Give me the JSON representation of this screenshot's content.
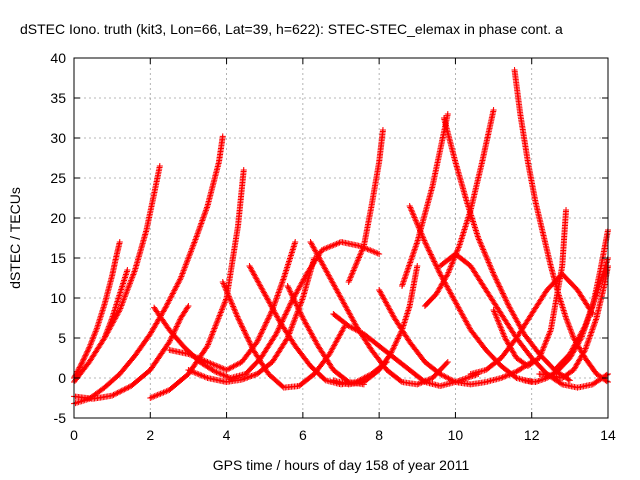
{
  "title": "dSTEC Iono. truth (kit3, Lon=66, Lat=39, h=622): STEC-STEC_elemax in phase cont. a",
  "chart_data": {
    "type": "scatter",
    "title": "dSTEC Iono. truth (kit3, Lon=66, Lat=39, h=622): STEC-STEC_elemax in phase cont. a",
    "xlabel": "GPS time / hours of day 158 of year 2011",
    "ylabel": "dSTEC  / TECUs",
    "xlim": [
      0,
      14
    ],
    "ylim": [
      -5,
      40
    ],
    "xticks": [
      "0",
      "2",
      "4",
      "6",
      "8",
      "10",
      "12",
      "14"
    ],
    "yticks": [
      "-5",
      "0",
      "5",
      "10",
      "15",
      "20",
      "25",
      "30",
      "35",
      "40"
    ],
    "grid": true,
    "marker": "plus",
    "color": "#ff0000",
    "series": [
      {
        "x": [
          0.0,
          0.2,
          0.4,
          0.6,
          0.8,
          1.0,
          1.1,
          1.2
        ],
        "y": [
          0.0,
          1.8,
          3.8,
          6.2,
          9.2,
          12.8,
          15.0,
          17.0
        ]
      },
      {
        "x": [
          0.0,
          0.4,
          0.8,
          1.2,
          1.6,
          1.9,
          2.1,
          2.25
        ],
        "y": [
          -0.5,
          2.0,
          5.0,
          8.5,
          13.5,
          18.5,
          23.0,
          26.5
        ]
      },
      {
        "x": [
          0.8,
          1.0,
          1.2,
          1.4
        ],
        "y": [
          5.0,
          7.5,
          10.5,
          13.5
        ]
      },
      {
        "x": [
          0.0,
          0.4,
          0.8,
          1.2,
          1.6,
          2.0,
          2.4,
          2.8,
          3.2,
          3.5,
          3.8,
          3.9
        ],
        "y": [
          -3.2,
          -2.6,
          -1.2,
          0.5,
          2.8,
          5.5,
          8.8,
          12.5,
          17.5,
          21.5,
          27.0,
          30.2
        ]
      },
      {
        "x": [
          2.0,
          2.5,
          3.0,
          3.5,
          4.0,
          4.3,
          4.45
        ],
        "y": [
          -2.5,
          -1.5,
          0.5,
          4.0,
          10.0,
          19.0,
          26.0
        ]
      },
      {
        "x": [
          0.0,
          0.5,
          1.0,
          1.5,
          2.0,
          2.5,
          2.8,
          3.0
        ],
        "y": [
          -2.3,
          -2.6,
          -2.2,
          -1.0,
          1.0,
          4.5,
          7.5,
          9.0
        ]
      },
      {
        "x": [
          2.1,
          2.5,
          2.9,
          3.3,
          3.7,
          4.1,
          4.5,
          4.9,
          5.3,
          5.7,
          6.1,
          6.5,
          7.0,
          7.5,
          8.0
        ],
        "y": [
          8.8,
          6.0,
          3.8,
          2.0,
          0.8,
          0.0,
          0.5,
          2.5,
          5.5,
          9.5,
          13.0,
          16.0,
          17.0,
          16.5,
          15.5
        ]
      },
      {
        "x": [
          3.0,
          3.5,
          4.0,
          4.4,
          4.8,
          5.2,
          5.6,
          6.0,
          6.3
        ],
        "y": [
          1.0,
          0.0,
          -0.5,
          -0.2,
          0.5,
          2.0,
          5.0,
          10.0,
          15.0
        ]
      },
      {
        "x": [
          2.5,
          3.0,
          3.5,
          4.0,
          4.4,
          4.8,
          5.2,
          5.5,
          5.8
        ],
        "y": [
          3.5,
          3.0,
          2.0,
          1.0,
          2.0,
          4.5,
          8.5,
          12.5,
          17.0
        ]
      },
      {
        "x": [
          3.9,
          4.3,
          4.7,
          5.1,
          5.5,
          5.9,
          6.3,
          6.7,
          7.1
        ],
        "y": [
          12.0,
          7.5,
          3.5,
          0.5,
          -1.2,
          -1.0,
          0.5,
          3.0,
          6.5
        ]
      },
      {
        "x": [
          4.6,
          5.0,
          5.4,
          5.8,
          6.2,
          6.6,
          7.0,
          7.4,
          7.8,
          8.2
        ],
        "y": [
          14.0,
          10.5,
          7.0,
          4.0,
          1.5,
          -0.3,
          -0.8,
          -0.5,
          0.5,
          2.0
        ]
      },
      {
        "x": [
          5.6,
          6.0,
          6.4,
          6.8,
          7.2,
          7.6
        ],
        "y": [
          11.5,
          7.5,
          4.0,
          1.0,
          -0.5,
          -0.8
        ]
      },
      {
        "x": [
          6.2,
          6.6,
          7.0,
          7.4,
          7.8,
          8.2,
          8.6,
          9.0,
          9.4,
          9.6,
          9.8
        ],
        "y": [
          17.0,
          13.5,
          10.0,
          6.5,
          3.5,
          1.0,
          -0.5,
          -0.8,
          0.0,
          1.0,
          2.0
        ]
      },
      {
        "x": [
          6.8,
          7.2,
          7.6,
          8.0,
          8.4,
          8.8,
          9.2,
          9.6,
          10.0,
          10.3,
          10.6
        ],
        "y": [
          8.0,
          6.5,
          5.5,
          4.0,
          2.5,
          1.0,
          -0.5,
          -1.0,
          -0.5,
          0.0,
          0.5
        ]
      },
      {
        "x": [
          7.2,
          7.6,
          7.8,
          8.0,
          8.1
        ],
        "y": [
          12.0,
          16.5,
          21.5,
          27.0,
          31.0
        ]
      },
      {
        "x": [
          6.8,
          7.2,
          7.6,
          8.0,
          8.3,
          8.6,
          8.8,
          9.0
        ],
        "y": [
          -0.3,
          -0.8,
          -0.5,
          1.0,
          3.0,
          6.0,
          9.0,
          14.0
        ]
      },
      {
        "x": [
          8.0,
          8.4,
          8.8,
          9.2,
          9.6,
          10.0,
          10.4,
          10.8,
          11.2,
          11.6,
          12.0
        ],
        "y": [
          11.0,
          7.5,
          4.5,
          2.0,
          0.5,
          -0.5,
          -0.8,
          -0.5,
          0.0,
          0.8,
          2.0
        ]
      },
      {
        "x": [
          8.8,
          9.2,
          9.6,
          10.0,
          10.4,
          10.8,
          11.2,
          11.6,
          12.0
        ],
        "y": [
          21.5,
          17.0,
          13.0,
          9.5,
          6.0,
          3.5,
          1.5,
          0.0,
          -0.5
        ]
      },
      {
        "x": [
          8.6,
          9.0,
          9.4,
          9.6,
          9.8
        ],
        "y": [
          11.5,
          17.0,
          24.0,
          28.5,
          33.0
        ]
      },
      {
        "x": [
          9.7,
          10.0,
          10.3,
          10.6,
          11.0,
          11.4,
          11.8,
          12.2,
          12.6,
          13.0
        ],
        "y": [
          32.5,
          27.0,
          22.0,
          17.5,
          13.0,
          9.0,
          5.5,
          3.0,
          1.0,
          -0.3
        ]
      },
      {
        "x": [
          9.2,
          9.5,
          9.8,
          10.1,
          10.4,
          10.7,
          11.0
        ],
        "y": [
          9.0,
          10.5,
          13.0,
          16.5,
          21.0,
          27.0,
          33.5
        ]
      },
      {
        "x": [
          9.6,
          10.0,
          10.4,
          10.8,
          11.2,
          11.6,
          12.0,
          12.4,
          12.8,
          13.2,
          13.6,
          14.0
        ],
        "y": [
          14.0,
          15.5,
          14.0,
          11.0,
          8.0,
          5.0,
          2.5,
          0.5,
          -0.8,
          -1.2,
          -0.8,
          0.5
        ]
      },
      {
        "x": [
          10.4,
          10.8,
          11.2,
          11.6,
          12.0,
          12.4,
          12.8,
          13.2,
          13.6
        ],
        "y": [
          0.5,
          1.0,
          2.5,
          5.0,
          8.0,
          11.0,
          13.0,
          11.0,
          8.0
        ]
      },
      {
        "x": [
          11.55,
          11.7,
          11.9,
          12.1,
          12.3,
          12.5,
          12.7,
          12.9,
          13.1,
          13.4,
          13.7,
          14.0
        ],
        "y": [
          38.5,
          33.0,
          27.0,
          22.0,
          18.0,
          14.0,
          10.5,
          7.5,
          5.0,
          2.5,
          0.5,
          -0.5
        ]
      },
      {
        "x": [
          11.0,
          11.3,
          11.6,
          11.9,
          12.2,
          12.5,
          12.8,
          12.9
        ],
        "y": [
          8.5,
          5.0,
          2.5,
          1.5,
          2.5,
          6.0,
          14.0,
          21.0
        ]
      },
      {
        "x": [
          11.8,
          12.1,
          12.4,
          12.7,
          13.0,
          13.3,
          13.6,
          13.8,
          14.0
        ],
        "y": [
          -0.3,
          -0.5,
          0.0,
          1.0,
          2.5,
          5.0,
          9.0,
          13.5,
          18.5
        ]
      },
      {
        "x": [
          12.2,
          12.5,
          12.8,
          13.1,
          13.4,
          13.7,
          13.9,
          14.0
        ],
        "y": [
          0.5,
          0.3,
          0.0,
          1.0,
          3.5,
          7.5,
          11.5,
          14.0
        ]
      },
      {
        "x": [
          12.6,
          13.0,
          13.4,
          13.7,
          14.0
        ],
        "y": [
          1.0,
          3.0,
          6.5,
          10.5,
          15.0
        ]
      }
    ]
  }
}
